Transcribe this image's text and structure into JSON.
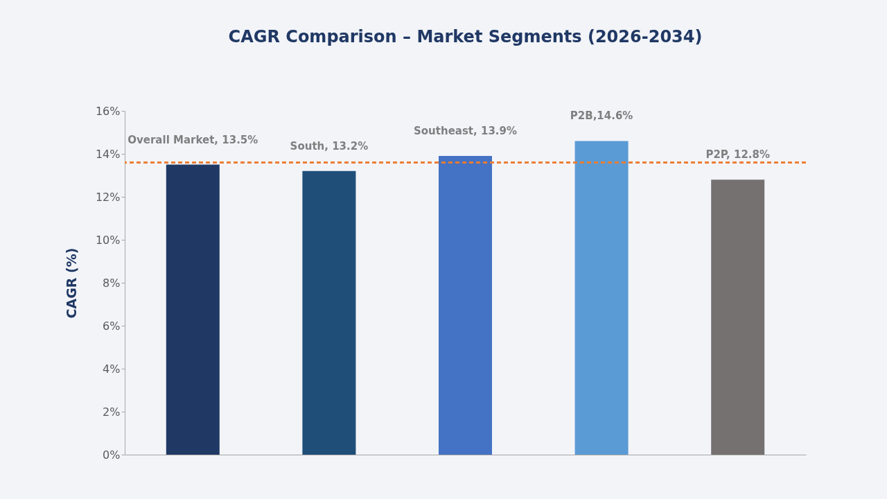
{
  "chart_data": {
    "type": "bar",
    "title": "CAGR Comparison – Market Segments (2026-2034)",
    "ylabel": "CAGR (%)",
    "categories": [
      null,
      null,
      null,
      null,
      null
    ],
    "values": [
      13.5,
      13.2,
      13.9,
      14.6,
      12.8
    ],
    "value_labels": [
      "Overall Market, 13.5%",
      "South, 13.2%",
      "Southeast, 13.9%",
      "P2B,14.6%",
      "P2P, 12.8%"
    ],
    "colors": [
      "#203864",
      "#1f4e79",
      "#4472c4",
      "#5b9bd5",
      "#767171"
    ],
    "ylim": [
      0,
      16
    ],
    "yticks": [
      {
        "value": 0,
        "label": "0%"
      },
      {
        "value": 2,
        "label": "2%"
      },
      {
        "value": 4,
        "label": "4%"
      },
      {
        "value": 6,
        "label": "6%"
      },
      {
        "value": 8,
        "label": "8%"
      },
      {
        "value": 10,
        "label": "10%"
      },
      {
        "value": 12,
        "label": "12%"
      },
      {
        "value": 14,
        "label": "14%"
      },
      {
        "value": 16,
        "label": "16%"
      }
    ],
    "ref_lines": [
      {
        "axis": "y",
        "value": 13.6,
        "color": "#ed7d31",
        "line_style": "dashed"
      }
    ],
    "grid": false
  }
}
